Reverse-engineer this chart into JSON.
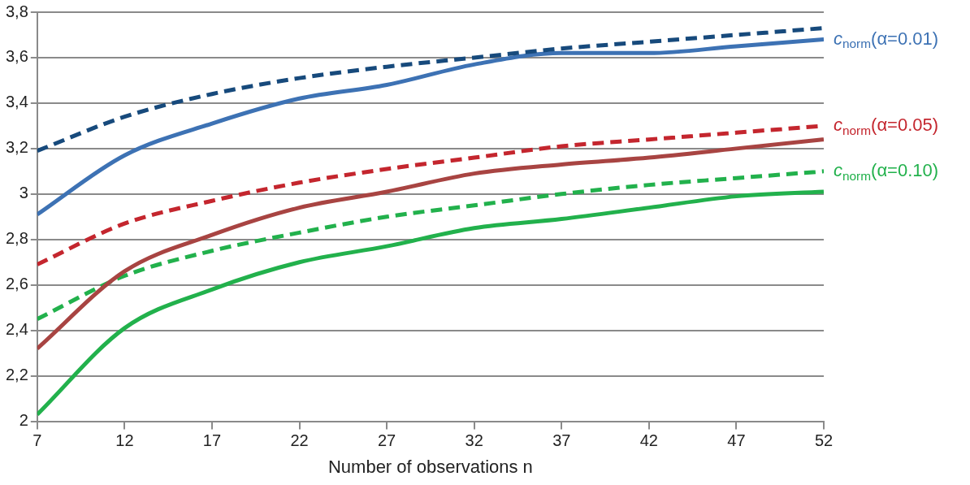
{
  "chart_data": {
    "type": "line",
    "xlabel": "Number of observations n",
    "x": [
      7,
      12,
      17,
      22,
      27,
      32,
      37,
      42,
      47,
      52
    ],
    "xlim": [
      7,
      52
    ],
    "xticks": [
      7,
      12,
      17,
      22,
      27,
      32,
      37,
      42,
      47,
      52
    ],
    "ylim": [
      2,
      3.8
    ],
    "yticks": [
      2,
      {
        "value": 2.2,
        "label": "2,2"
      },
      {
        "value": 2.4,
        "label": "2,4"
      },
      {
        "value": 2.6,
        "label": "2,6"
      },
      {
        "value": 2.8,
        "label": "2,8"
      },
      3,
      {
        "value": 3.2,
        "label": "3,2"
      },
      {
        "value": 3.4,
        "label": "3,4"
      },
      {
        "value": 3.6,
        "label": "3,6"
      },
      {
        "value": 3.8,
        "label": "3,8"
      }
    ],
    "grid": "y",
    "legend": false,
    "marker": "none",
    "series": [
      {
        "color": "#174a7c",
        "line_style": "dashed",
        "values": [
          3.19,
          3.34,
          3.44,
          3.51,
          3.56,
          3.6,
          3.64,
          3.67,
          3.7,
          3.73
        ]
      },
      {
        "name": "c$_{norm}$(α=0.01)",
        "color": "#3d72b4",
        "line_style": "solid",
        "values": [
          2.91,
          3.17,
          3.31,
          3.42,
          3.48,
          3.57,
          3.62,
          3.62,
          3.65,
          3.68
        ]
      },
      {
        "name": "c$_{norm}$(α=0.05)",
        "color": "#c4262e",
        "line_style": "dashed",
        "values": [
          2.69,
          2.87,
          2.97,
          3.05,
          3.11,
          3.16,
          3.21,
          3.24,
          3.27,
          3.3
        ]
      },
      {
        "color": "#a84442",
        "line_style": "solid",
        "values": [
          2.32,
          2.66,
          2.82,
          2.94,
          3.01,
          3.09,
          3.13,
          3.16,
          3.2,
          3.24
        ]
      },
      {
        "name": "c$_{norm}$(α=0.10)",
        "color": "#22b14c",
        "line_style": "dashed",
        "values": [
          2.45,
          2.64,
          2.75,
          2.83,
          2.9,
          2.95,
          3.0,
          3.04,
          3.07,
          3.1
        ]
      },
      {
        "color": "#22b14c",
        "line_style": "solid",
        "values": [
          2.03,
          2.41,
          2.58,
          2.7,
          2.77,
          2.85,
          2.89,
          2.94,
          2.99,
          3.01
        ]
      }
    ]
  }
}
